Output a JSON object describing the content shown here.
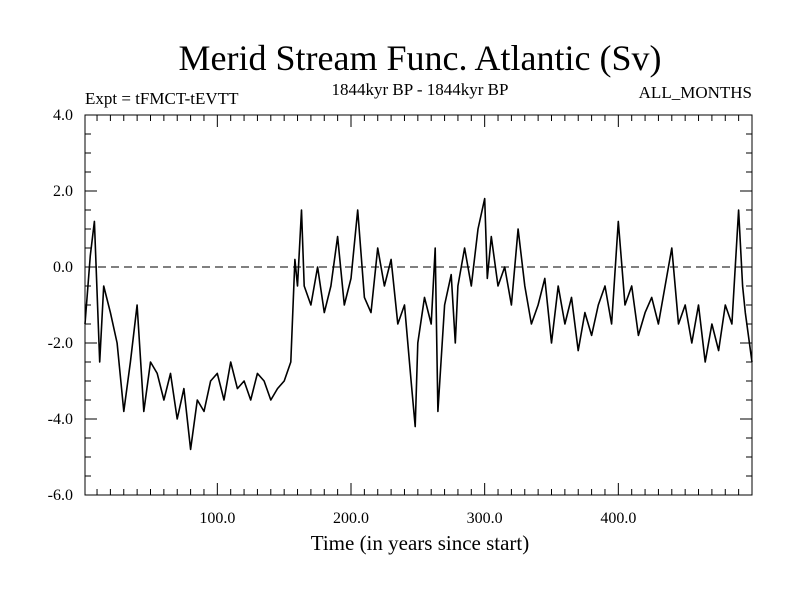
{
  "chart_data": {
    "type": "line",
    "title": "Merid Stream Func. Atlantic (Sv)",
    "subtitle_left": "Expt = tFMCT-tEVTT",
    "subtitle_center": "1844kyr BP - 1844kyr BP",
    "subtitle_right": "ALL_MONTHS",
    "xlabel": "Time (in years since start)",
    "ylabel": "",
    "xlim": [
      1,
      500
    ],
    "ylim": [
      -6,
      4
    ],
    "xticks": [
      100,
      200,
      300,
      400
    ],
    "xtick_labels": [
      "100.0",
      "200.0",
      "300.0",
      "400.0"
    ],
    "yticks": [
      4,
      2,
      0,
      -2,
      -4,
      -6
    ],
    "ytick_labels": [
      "4.0",
      "2.0",
      "0.0",
      "-2.0",
      "-4.0",
      "-6.0"
    ],
    "reference_line": 0,
    "series": [
      {
        "name": "Merid Stream Func. Atlantic",
        "color": "#000000",
        "x": [
          1,
          5,
          8,
          12,
          15,
          20,
          25,
          30,
          35,
          40,
          45,
          50,
          55,
          60,
          65,
          70,
          75,
          80,
          85,
          90,
          95,
          100,
          105,
          110,
          115,
          120,
          125,
          130,
          135,
          140,
          145,
          150,
          155,
          158,
          160,
          163,
          165,
          170,
          175,
          180,
          185,
          190,
          195,
          200,
          205,
          210,
          215,
          220,
          225,
          230,
          235,
          240,
          245,
          248,
          250,
          255,
          260,
          263,
          265,
          270,
          275,
          278,
          280,
          285,
          290,
          295,
          300,
          302,
          305,
          310,
          315,
          320,
          325,
          330,
          335,
          340,
          345,
          350,
          355,
          360,
          365,
          370,
          375,
          380,
          385,
          390,
          395,
          400,
          405,
          410,
          415,
          420,
          425,
          430,
          435,
          440,
          445,
          450,
          455,
          460,
          465,
          470,
          475,
          480,
          485,
          490,
          493,
          495,
          500
        ],
        "y": [
          -1.5,
          0.3,
          1.2,
          -2.5,
          -0.5,
          -1.2,
          -2.0,
          -3.8,
          -2.5,
          -1.0,
          -3.8,
          -2.5,
          -2.8,
          -3.5,
          -2.8,
          -4.0,
          -3.2,
          -4.8,
          -3.5,
          -3.8,
          -3.0,
          -2.8,
          -3.5,
          -2.5,
          -3.2,
          -3.0,
          -3.5,
          -2.8,
          -3.0,
          -3.5,
          -3.2,
          -3.0,
          -2.5,
          0.2,
          -0.5,
          1.5,
          -0.5,
          -1.0,
          0.0,
          -1.2,
          -0.5,
          0.8,
          -1.0,
          -0.3,
          1.5,
          -0.8,
          -1.2,
          0.5,
          -0.5,
          0.2,
          -1.5,
          -1.0,
          -3.0,
          -4.2,
          -2.0,
          -0.8,
          -1.5,
          0.5,
          -3.8,
          -1.0,
          -0.2,
          -2.0,
          -0.5,
          0.5,
          -0.5,
          1.0,
          1.8,
          -0.3,
          0.8,
          -0.5,
          0.0,
          -1.0,
          1.0,
          -0.5,
          -1.5,
          -1.0,
          -0.3,
          -2.0,
          -0.5,
          -1.5,
          -0.8,
          -2.2,
          -1.2,
          -1.8,
          -1.0,
          -0.5,
          -1.5,
          1.2,
          -1.0,
          -0.5,
          -1.8,
          -1.2,
          -0.8,
          -1.5,
          -0.5,
          0.5,
          -1.5,
          -1.0,
          -2.0,
          -1.0,
          -2.5,
          -1.5,
          -2.2,
          -1.0,
          -1.5,
          1.5,
          -0.5,
          -1.2,
          -2.5
        ]
      }
    ]
  }
}
